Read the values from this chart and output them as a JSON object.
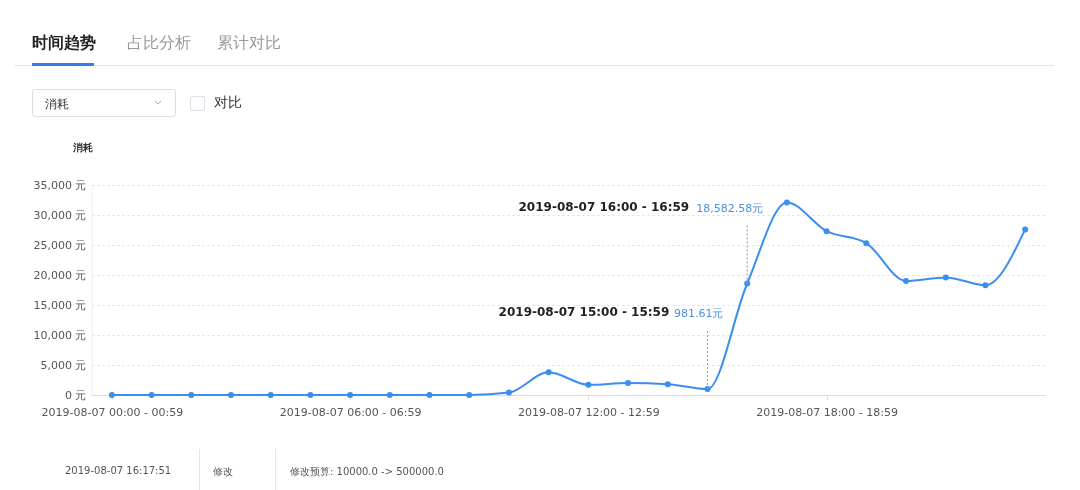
{
  "chart_data": {
    "type": "line",
    "ylabel": "消耗",
    "categories": [
      "2019-08-07 00:00 - 00:59",
      null,
      null,
      null,
      null,
      null,
      "2019-08-07 06:00 - 06:59",
      null,
      null,
      null,
      null,
      null,
      "2019-08-07 12:00 - 12:59",
      null,
      null,
      null,
      null,
      null,
      "2019-08-07 18:00 - 18:59",
      null,
      null,
      null,
      null,
      null
    ],
    "series": [
      {
        "color": "#3a8ef0",
        "values": [
          0,
          0,
          0,
          0,
          0,
          0,
          0,
          0,
          0,
          0,
          400,
          3800,
          1700,
          2000,
          1800,
          981.61,
          18582.58,
          32100,
          27300,
          25300,
          19000,
          19600,
          18300,
          27600
        ],
        "value_labels": [
          null,
          null,
          null,
          null,
          null,
          null,
          null,
          null,
          null,
          null,
          null,
          null,
          null,
          null,
          null,
          "981.61元",
          "18,582.58元",
          null,
          null,
          null,
          null,
          null,
          null,
          null
        ]
      }
    ],
    "ylim": [
      0,
      35000
    ],
    "yticks": [
      {
        "value": 0,
        "label": "0 元"
      },
      {
        "value": 5000,
        "label": "5,000 元"
      },
      {
        "value": 10000,
        "label": "10,000 元"
      },
      {
        "value": 15000,
        "label": "15,000 元"
      },
      {
        "value": 20000,
        "label": "20,000 元"
      },
      {
        "value": 25000,
        "label": "25,000 元"
      },
      {
        "value": 30000,
        "label": "30,000 元"
      },
      {
        "value": 35000,
        "label": "35,000 元"
      }
    ],
    "grid": "y",
    "marker": "circle",
    "line_style": "solid",
    "annotations": [
      "时间趋势",
      "占比分析",
      "累计对比",
      "消耗",
      "对比",
      "2019-08-07 16:17:51",
      "修改",
      "修改预算: 10000.0 -> 500000.0",
      "2019-08-07 15:00 - 15:59",
      "2019-08-07 16:00 - 16:59"
    ]
  }
}
